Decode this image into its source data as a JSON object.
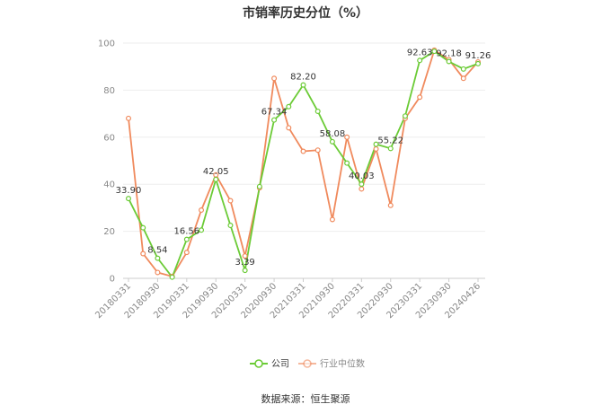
{
  "title": "市销率历史分位（%）",
  "source": "数据来源：恒生聚源",
  "chart_data": {
    "type": "line",
    "title": "市销率历史分位（%）",
    "ylim": [
      0,
      100
    ],
    "yticks": [
      0,
      20,
      40,
      60,
      80,
      100
    ],
    "grid": true,
    "legend_position": "bottom",
    "x_tick_labels": [
      "20180331",
      "20180930",
      "20190331",
      "20190930",
      "20200331",
      "20200930",
      "20210331",
      "20210930",
      "20220331",
      "20220930",
      "20230331",
      "20230930",
      "20240426"
    ],
    "series": [
      {
        "name": "公司",
        "color": "#6bcb36",
        "values": [
          33.9,
          21.5,
          8.54,
          0.5,
          16.56,
          20.5,
          42.05,
          22.5,
          3.39,
          39.0,
          67.34,
          73.0,
          82.2,
          71.0,
          58.08,
          49.0,
          40.03,
          57.0,
          55.22,
          69.0,
          92.63,
          96.5,
          92.18,
          89.0,
          91.26
        ]
      },
      {
        "name": "行业中位数",
        "color": "#f08a5d",
        "values": [
          68.0,
          10.5,
          2.5,
          0.8,
          11.0,
          29.0,
          44.0,
          33.0,
          9.5,
          38.5,
          85.0,
          64.0,
          54.0,
          54.5,
          25.0,
          60.0,
          38.0,
          55.0,
          31.0,
          68.0,
          77.0,
          97.0,
          93.0,
          85.0,
          92.0
        ]
      }
    ],
    "data_labels": [
      {
        "index": 0,
        "text": "33.90"
      },
      {
        "index": 2,
        "text": "8.54"
      },
      {
        "index": 4,
        "text": "16.56"
      },
      {
        "index": 6,
        "text": "42.05"
      },
      {
        "index": 8,
        "text": "3.39"
      },
      {
        "index": 10,
        "text": "67.34"
      },
      {
        "index": 12,
        "text": "82.20"
      },
      {
        "index": 14,
        "text": "58.08"
      },
      {
        "index": 16,
        "text": "40.03"
      },
      {
        "index": 18,
        "text": "55.22"
      },
      {
        "index": 20,
        "text": "92.63"
      },
      {
        "index": 22,
        "text": "92.18"
      },
      {
        "index": 24,
        "text": "91.26"
      }
    ]
  }
}
